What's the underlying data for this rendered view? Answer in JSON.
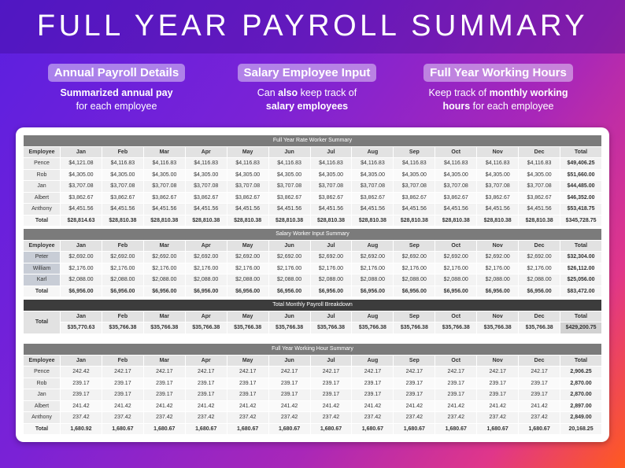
{
  "header": {
    "title": "FULL YEAR PAYROLL SUMMARY"
  },
  "features": [
    {
      "label": "Annual Payroll Details",
      "description": [
        [
          {
            "text": "Summarized annual pay",
            "bold": true
          }
        ],
        [
          {
            "text": "for each employee",
            "bold": false
          }
        ]
      ]
    },
    {
      "label": "Salary Employee Input",
      "description": [
        [
          {
            "text": "Can ",
            "bold": false
          },
          {
            "text": "also",
            "bold": true
          },
          {
            "text": " keep track of",
            "bold": false
          }
        ],
        [
          {
            "text": "salary employees",
            "bold": true
          }
        ]
      ]
    },
    {
      "label": "Full Year Working Hours",
      "description": [
        [
          {
            "text": "Keep track of ",
            "bold": false
          },
          {
            "text": "monthly working",
            "bold": true
          }
        ],
        [
          {
            "text": "hours",
            "bold": true
          },
          {
            "text": " for each employee",
            "bold": false
          }
        ]
      ]
    }
  ],
  "tables": [
    {
      "title": "Full Year Rate Worker Summary",
      "style": "rate",
      "header": [
        "Employee",
        "Jan",
        "Feb",
        "Mar",
        "Apr",
        "May",
        "Jun",
        "Jul",
        "Aug",
        "Sep",
        "Oct",
        "Nov",
        "Dec",
        "Total"
      ],
      "rows": [
        [
          "Pence",
          "$4,121.08",
          "$4,116.83",
          "$4,116.83",
          "$4,116.83",
          "$4,116.83",
          "$4,116.83",
          "$4,116.83",
          "$4,116.83",
          "$4,116.83",
          "$4,116.83",
          "$4,116.83",
          "$4,116.83",
          "$49,406.25"
        ],
        [
          "Rob",
          "$4,305.00",
          "$4,305.00",
          "$4,305.00",
          "$4,305.00",
          "$4,305.00",
          "$4,305.00",
          "$4,305.00",
          "$4,305.00",
          "$4,305.00",
          "$4,305.00",
          "$4,305.00",
          "$4,305.00",
          "$51,660.00"
        ],
        [
          "Jan",
          "$3,707.08",
          "$3,707.08",
          "$3,707.08",
          "$3,707.08",
          "$3,707.08",
          "$3,707.08",
          "$3,707.08",
          "$3,707.08",
          "$3,707.08",
          "$3,707.08",
          "$3,707.08",
          "$3,707.08",
          "$44,485.00"
        ],
        [
          "Albert",
          "$3,862.67",
          "$3,862.67",
          "$3,862.67",
          "$3,862.67",
          "$3,862.67",
          "$3,862.67",
          "$3,862.67",
          "$3,862.67",
          "$3,862.67",
          "$3,862.67",
          "$3,862.67",
          "$3,862.67",
          "$46,352.00"
        ],
        [
          "Anthony",
          "$4,451.56",
          "$4,451.56",
          "$4,451.56",
          "$4,451.56",
          "$4,451.56",
          "$4,451.56",
          "$4,451.56",
          "$4,451.56",
          "$4,451.56",
          "$4,451.56",
          "$4,451.56",
          "$4,451.56",
          "$53,418.75"
        ]
      ],
      "total": [
        "Total",
        "$28,814.63",
        "$28,810.38",
        "$28,810.38",
        "$28,810.38",
        "$28,810.38",
        "$28,810.38",
        "$28,810.38",
        "$28,810.38",
        "$28,810.38",
        "$28,810.38",
        "$28,810.38",
        "$28,810.38",
        "$345,728.75"
      ]
    },
    {
      "title": "Salary Worker Input Summary",
      "style": "salary",
      "header": [
        "Employee",
        "Jan",
        "Feb",
        "Mar",
        "Apr",
        "May",
        "Jun",
        "Jul",
        "Aug",
        "Sep",
        "Oct",
        "Nov",
        "Dec",
        "Total"
      ],
      "rows": [
        [
          "Peter",
          "$2,692.00",
          "$2,692.00",
          "$2,692.00",
          "$2,692.00",
          "$2,692.00",
          "$2,692.00",
          "$2,692.00",
          "$2,692.00",
          "$2,692.00",
          "$2,692.00",
          "$2,692.00",
          "$2,692.00",
          "$32,304.00"
        ],
        [
          "William",
          "$2,176.00",
          "$2,176.00",
          "$2,176.00",
          "$2,176.00",
          "$2,176.00",
          "$2,176.00",
          "$2,176.00",
          "$2,176.00",
          "$2,176.00",
          "$2,176.00",
          "$2,176.00",
          "$2,176.00",
          "$26,112.00"
        ],
        [
          "Karl",
          "$2,088.00",
          "$2,088.00",
          "$2,088.00",
          "$2,088.00",
          "$2,088.00",
          "$2,088.00",
          "$2,088.00",
          "$2,088.00",
          "$2,088.00",
          "$2,088.00",
          "$2,088.00",
          "$2,088.00",
          "$25,056.00"
        ]
      ],
      "total": [
        "Total",
        "$6,956.00",
        "$6,956.00",
        "$6,956.00",
        "$6,956.00",
        "$6,956.00",
        "$6,956.00",
        "$6,956.00",
        "$6,956.00",
        "$6,956.00",
        "$6,956.00",
        "$6,956.00",
        "$6,956.00",
        "$83,472.00"
      ]
    },
    {
      "title": "Total Monthly Payroll Breakdown",
      "style": "breakdown",
      "row_label": "Total",
      "header": [
        "Jan",
        "Feb",
        "Mar",
        "Apr",
        "May",
        "Jun",
        "Jul",
        "Aug",
        "Sep",
        "Oct",
        "Nov",
        "Dec",
        "Total"
      ],
      "values": [
        "$35,770.63",
        "$35,766.38",
        "$35,766.38",
        "$35,766.38",
        "$35,766.38",
        "$35,766.38",
        "$35,766.38",
        "$35,766.38",
        "$35,766.38",
        "$35,766.38",
        "$35,766.38",
        "$35,766.38",
        "$429,200.75"
      ]
    },
    {
      "title": "Full Year Working Hour Summary",
      "style": "hours",
      "header": [
        "Employee",
        "Jan",
        "Feb",
        "Mar",
        "Apr",
        "May",
        "Jun",
        "Jul",
        "Aug",
        "Sep",
        "Oct",
        "Nov",
        "Dec",
        "Total"
      ],
      "rows": [
        [
          "Pence",
          "242.42",
          "242.17",
          "242.17",
          "242.17",
          "242.17",
          "242.17",
          "242.17",
          "242.17",
          "242.17",
          "242.17",
          "242.17",
          "242.17",
          "2,906.25"
        ],
        [
          "Rob",
          "239.17",
          "239.17",
          "239.17",
          "239.17",
          "239.17",
          "239.17",
          "239.17",
          "239.17",
          "239.17",
          "239.17",
          "239.17",
          "239.17",
          "2,870.00"
        ],
        [
          "Jan",
          "239.17",
          "239.17",
          "239.17",
          "239.17",
          "239.17",
          "239.17",
          "239.17",
          "239.17",
          "239.17",
          "239.17",
          "239.17",
          "239.17",
          "2,870.00"
        ],
        [
          "Albert",
          "241.42",
          "241.42",
          "241.42",
          "241.42",
          "241.42",
          "241.42",
          "241.42",
          "241.42",
          "241.42",
          "241.42",
          "241.42",
          "241.42",
          "2,897.00"
        ],
        [
          "Anthony",
          "237.42",
          "237.42",
          "237.42",
          "237.42",
          "237.42",
          "237.42",
          "237.42",
          "237.42",
          "237.42",
          "237.42",
          "237.42",
          "237.42",
          "2,849.00"
        ]
      ],
      "total": [
        "Total",
        "1,680.92",
        "1,680.67",
        "1,680.67",
        "1,680.67",
        "1,680.67",
        "1,680.67",
        "1,680.67",
        "1,680.67",
        "1,680.67",
        "1,680.67",
        "1,680.67",
        "1,680.67",
        "20,168.25"
      ]
    }
  ]
}
